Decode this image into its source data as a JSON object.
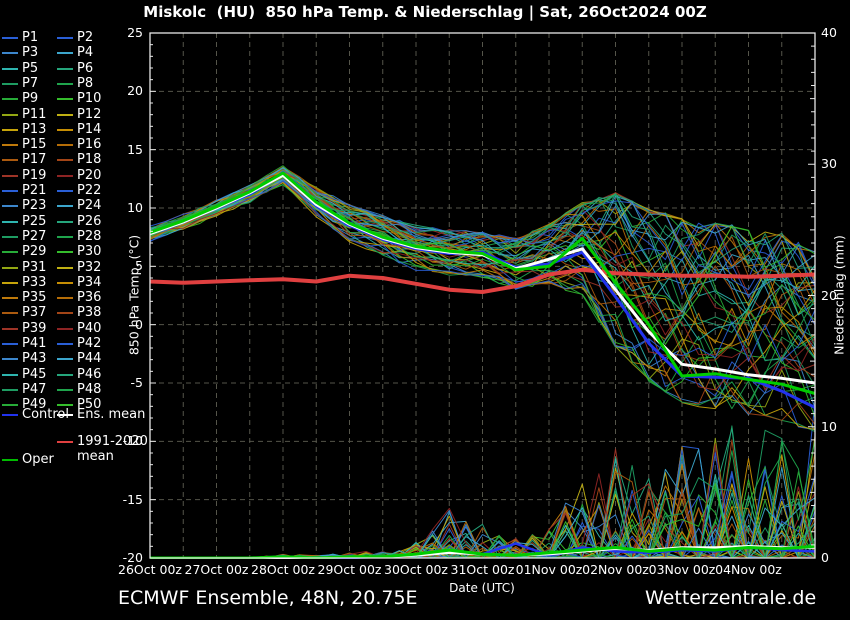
{
  "title": "Miskolc  (HU)  850 hPa Temp. & Niederschlag | Sat, 26Oct2024 00Z",
  "footer": {
    "left": "ECMWF Ensemble, 48N, 20.75E",
    "right": "Wetterzentrale.de"
  },
  "legend": {
    "members": [
      "P1",
      "P2",
      "P3",
      "P4",
      "P5",
      "P6",
      "P7",
      "P8",
      "P9",
      "P10",
      "P11",
      "P12",
      "P13",
      "P14",
      "P15",
      "P16",
      "P17",
      "P18",
      "P19",
      "P20",
      "P21",
      "P22",
      "P23",
      "P24",
      "P25",
      "P26",
      "P27",
      "P28",
      "P29",
      "P30",
      "P31",
      "P32",
      "P33",
      "P34",
      "P35",
      "P36",
      "P37",
      "P38",
      "P39",
      "P40",
      "P41",
      "P42",
      "P43",
      "P44",
      "P45",
      "P46",
      "P47",
      "P48",
      "P49",
      "P50"
    ],
    "member_colors": [
      "#2a5fd6",
      "#2a5fd6",
      "#3c86cc",
      "#3ca6cc",
      "#2eb4ae",
      "#25a67c",
      "#1e9c62",
      "#1fa44c",
      "#27ab38",
      "#35bd2c",
      "#93a713",
      "#c0b013",
      "#c6a40a",
      "#c68e04",
      "#bf7a0b",
      "#b56d07",
      "#ab5a0f",
      "#a34517",
      "#9e3427",
      "#8e2424"
    ],
    "special": [
      {
        "label": "Control",
        "color": "#2233ee"
      },
      {
        "label": "Ens. mean",
        "color": "#ffffff"
      },
      {
        "label": "1991-2020 mean",
        "color": "#e04040"
      },
      {
        "label": "Oper",
        "color": "#00bb00"
      }
    ]
  },
  "chart_data": {
    "type": "line",
    "title": "Miskolc  (HU)  850 hPa Temp. & Niederschlag | Sat, 26Oct2024 00Z",
    "xlabel": "Date (UTC)",
    "ylabel_left": "850 hPa Temp. (°C)",
    "ylabel_right": "Niederschlag (mm)",
    "ylim_left": [
      -20,
      25
    ],
    "ylim_right": [
      0,
      40
    ],
    "grid": "dashed",
    "legend_position": "left",
    "n_members": 50,
    "step_hours": 12,
    "temp_ticks": [
      25,
      20,
      15,
      10,
      5,
      0,
      -5,
      -10,
      -15,
      -20
    ],
    "precip_ticks": [
      40,
      30,
      20,
      10,
      0
    ],
    "x_tick_labels": [
      "26Oct 00z",
      "27Oct 00z",
      "28Oct 00z",
      "29Oct 00z",
      "30Oct 00z",
      "31Oct 00z",
      "01Nov 00z",
      "02Nov 00z",
      "03Nov 00z",
      "04Nov 00z"
    ],
    "x_times_12h": [
      "26Oct00",
      "26Oct12",
      "27Oct00",
      "27Oct12",
      "28Oct00",
      "28Oct12",
      "29Oct00",
      "29Oct12",
      "30Oct00",
      "30Oct12",
      "31Oct00",
      "31Oct12",
      "01Nov00",
      "01Nov12",
      "02Nov00",
      "02Nov12",
      "03Nov00",
      "03Nov12",
      "04Nov00",
      "04Nov12",
      "05Nov00"
    ],
    "series": {
      "ens_mean_temp": [
        7.8,
        8.8,
        10.0,
        11.3,
        12.8,
        10.3,
        8.6,
        7.4,
        6.6,
        6.2,
        6.0,
        4.8,
        5.6,
        6.5,
        3.0,
        -0.6,
        -3.4,
        -3.8,
        -4.3,
        -4.6,
        -5.0
      ],
      "control_temp": [
        7.8,
        8.8,
        10.0,
        11.2,
        12.9,
        10.2,
        8.5,
        7.3,
        6.5,
        6.1,
        6.2,
        4.9,
        5.2,
        6.2,
        2.4,
        -1.6,
        -4.4,
        -4.5,
        -4.6,
        -5.7,
        -7.1
      ],
      "oper_temp": [
        7.9,
        8.9,
        10.1,
        11.4,
        13.0,
        10.5,
        8.7,
        7.5,
        6.7,
        6.3,
        6.1,
        4.7,
        5.0,
        7.4,
        3.6,
        0.0,
        -4.4,
        -4.2,
        -4.7,
        -5.1,
        -5.9
      ],
      "climate_mean_temp": [
        3.7,
        3.6,
        3.7,
        3.8,
        3.9,
        3.7,
        4.2,
        4.0,
        3.5,
        3.0,
        2.8,
        3.3,
        4.3,
        4.7,
        4.4,
        4.3,
        4.2,
        4.2,
        4.1,
        4.2,
        4.3
      ],
      "member_temp_min": [
        7.2,
        8.2,
        9.4,
        10.6,
        12.1,
        9.3,
        7.1,
        6.0,
        4.7,
        4.3,
        4.1,
        3.0,
        3.4,
        2.2,
        -2.2,
        -5.2,
        -7.2,
        -7.6,
        -8.1,
        -8.6,
        -9.6
      ],
      "member_temp_max": [
        8.4,
        9.4,
        10.6,
        11.9,
        13.5,
        11.7,
        10.3,
        9.3,
        8.5,
        8.1,
        8.0,
        7.4,
        8.6,
        10.6,
        11.6,
        10.2,
        9.6,
        9.2,
        8.6,
        8.2,
        6.6
      ],
      "ens_mean_precip": [
        0,
        0,
        0,
        0,
        0,
        0,
        0.1,
        0.1,
        0.2,
        0.4,
        0.3,
        0.2,
        0.3,
        0.5,
        0.7,
        0.6,
        0.8,
        0.8,
        0.9,
        0.8,
        0.8
      ],
      "control_precip": [
        0,
        0,
        0,
        0,
        0,
        0,
        0,
        0.1,
        0.2,
        0.5,
        0.3,
        1.1,
        0.2,
        0.8,
        0.5,
        0.4,
        0.6,
        0.5,
        0.8,
        0.6,
        0.5
      ],
      "oper_precip": [
        0,
        0,
        0,
        0,
        0.1,
        0,
        0.1,
        0.1,
        0.3,
        0.6,
        0.3,
        0.2,
        0.4,
        0.6,
        0.8,
        0.5,
        0.7,
        0.6,
        0.8,
        0.7,
        0.9
      ],
      "member_precip_max": [
        0,
        0,
        0,
        0,
        0.3,
        0.2,
        0.4,
        0.6,
        1.2,
        3.8,
        2.6,
        1.6,
        2.4,
        6.6,
        8.4,
        6.6,
        8.6,
        9.2,
        11.5,
        10.5,
        12.0
      ]
    }
  }
}
